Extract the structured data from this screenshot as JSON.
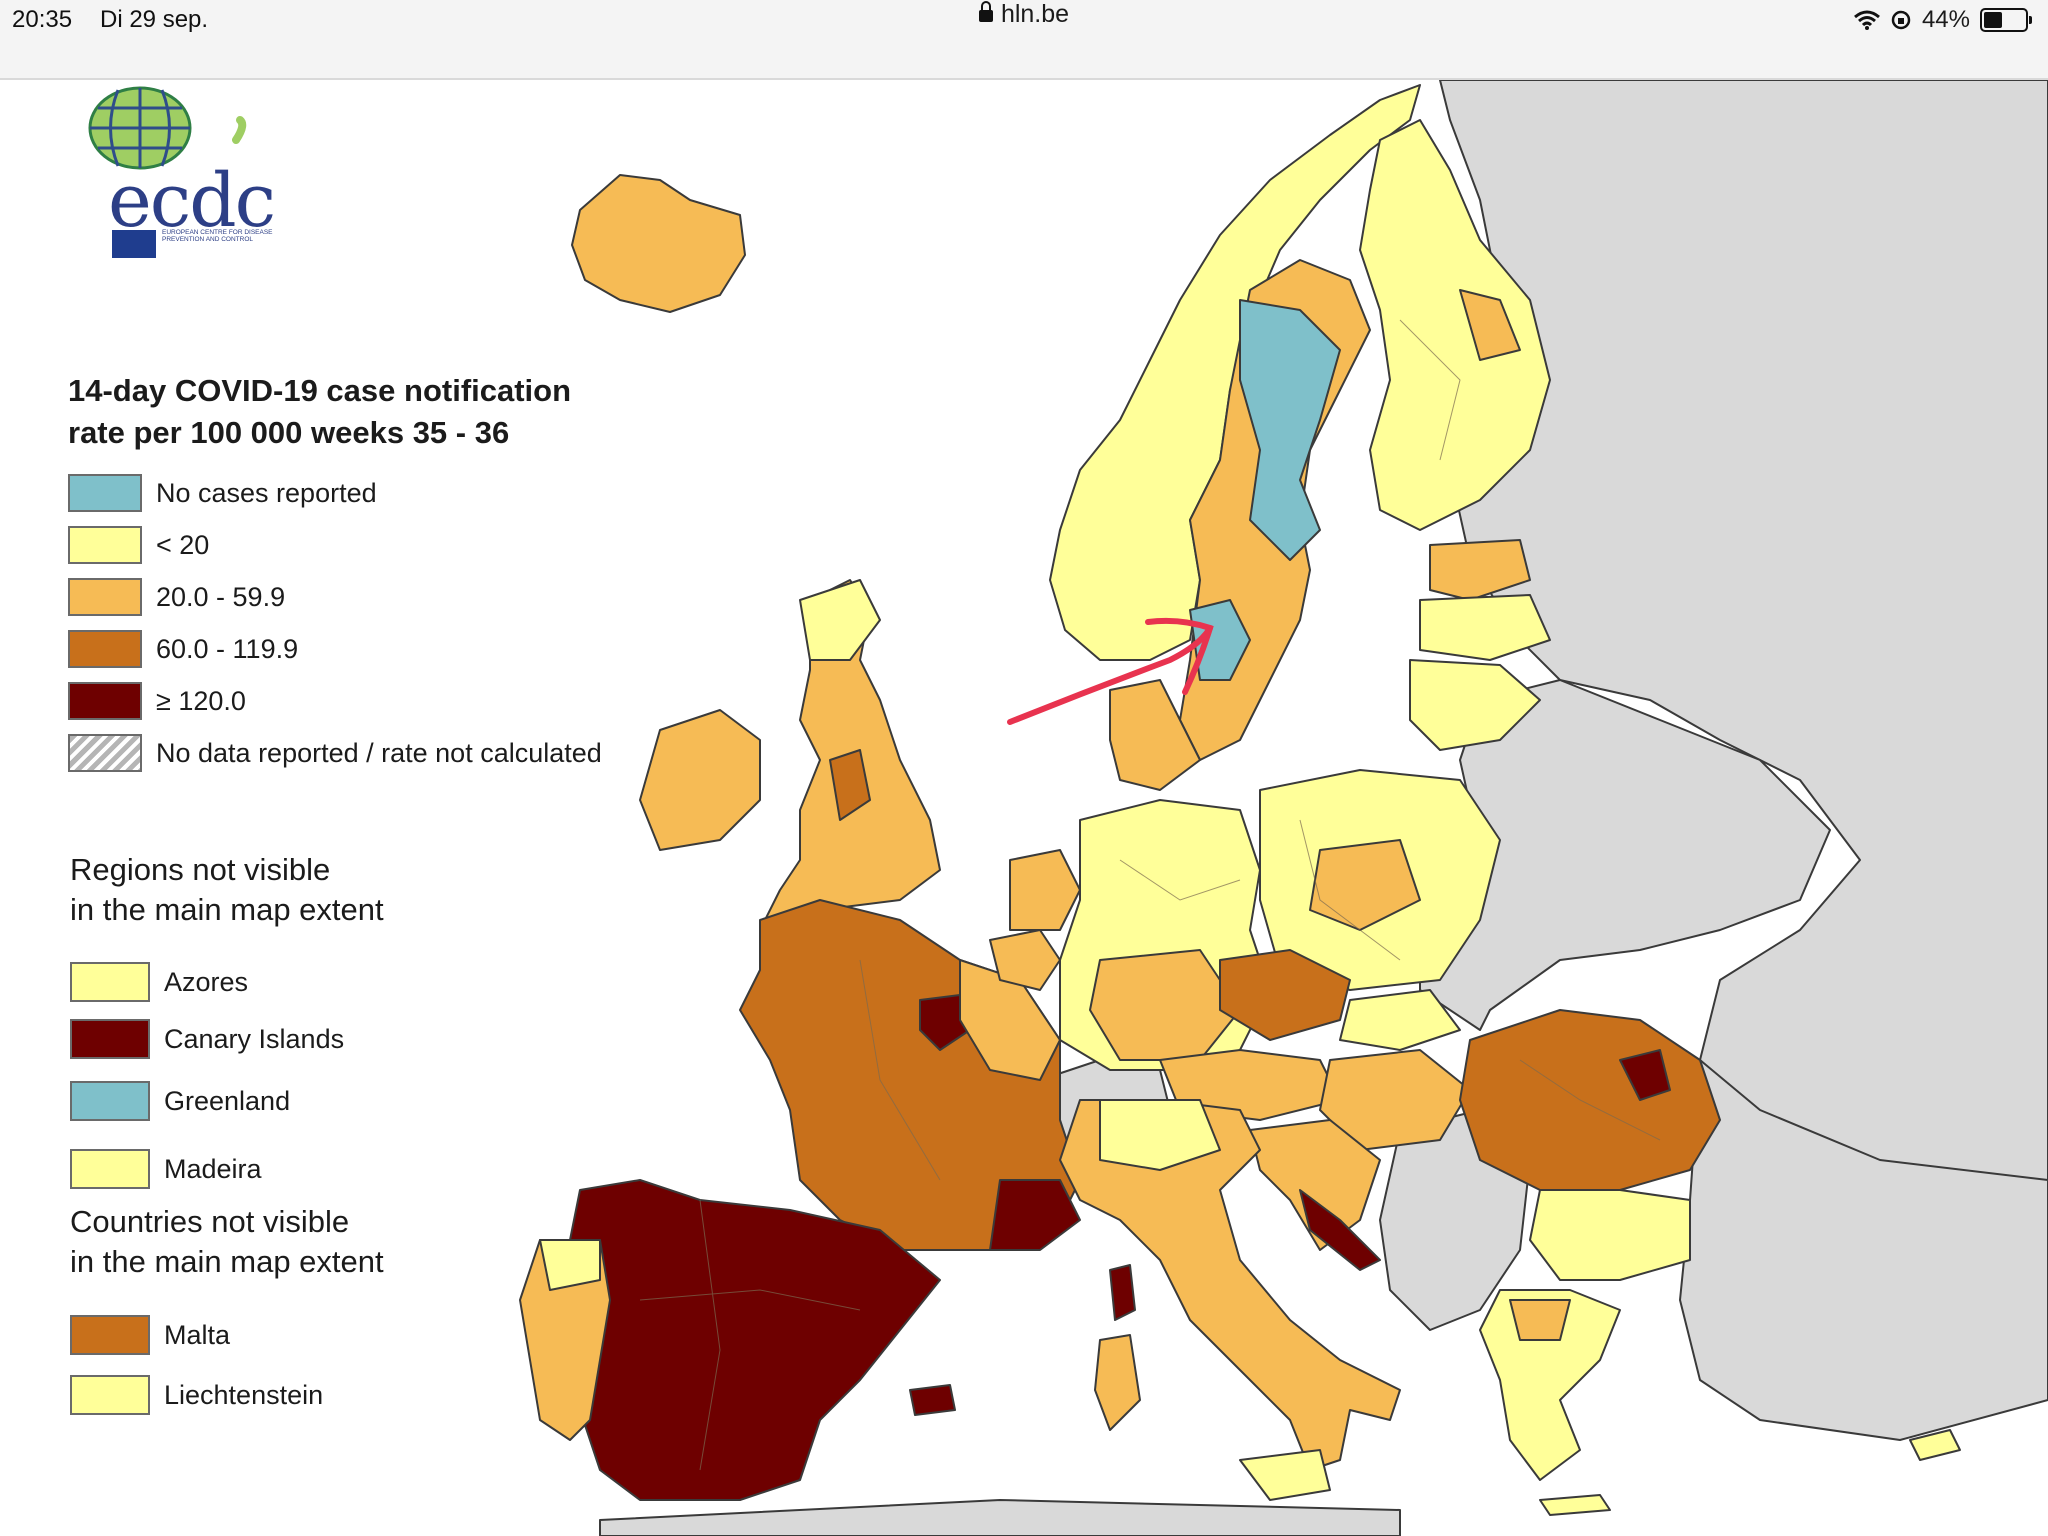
{
  "status_bar": {
    "time": "20:35",
    "date": "Di 29 sep.",
    "url": "hln.be",
    "battery": "44%",
    "battery_level": 0.44
  },
  "logo": {
    "text": "ecdc",
    "agency": "EUROPEAN CENTRE FOR DISEASE PREVENTION AND CONTROL"
  },
  "legend": {
    "title_line1": "14-day COVID-19 case notification",
    "title_line2": "rate per 100 000 weeks 35 - 36",
    "items": [
      {
        "label": "No cases reported",
        "color": "#7fc0ca"
      },
      {
        "label": "< 20",
        "color": "#ffff99"
      },
      {
        "label": "20.0 - 59.9",
        "color": "#f6bb55"
      },
      {
        "label": "60.0 - 119.9",
        "color": "#c8701b"
      },
      {
        "label": "≥ 120.0",
        "color": "#6e0000"
      },
      {
        "label": "No data reported / rate not calculated",
        "color": "hatched-grey"
      }
    ]
  },
  "regions_not_visible": {
    "heading_line1": "Regions not visible",
    "heading_line2": "in the main map extent",
    "items": [
      {
        "label": "Azores",
        "color": "#ffff99"
      },
      {
        "label": "Canary Islands",
        "color": "#6e0000"
      },
      {
        "label": "Greenland",
        "color": "#7fc0ca"
      },
      {
        "label": "Madeira",
        "color": "#ffff99"
      }
    ]
  },
  "countries_not_visible": {
    "heading_line1": "Countries not visible",
    "heading_line2": "in the main map extent",
    "items": [
      {
        "label": "Malta",
        "color": "#c8701b"
      },
      {
        "label": "Liechtenstein",
        "color": "#ffff99"
      }
    ]
  },
  "map_colors": {
    "non_eu": "#d9d9d9",
    "sea": "#ffffff",
    "border": "#3a3a3a",
    "annotation_arrow": "#e8334f"
  }
}
